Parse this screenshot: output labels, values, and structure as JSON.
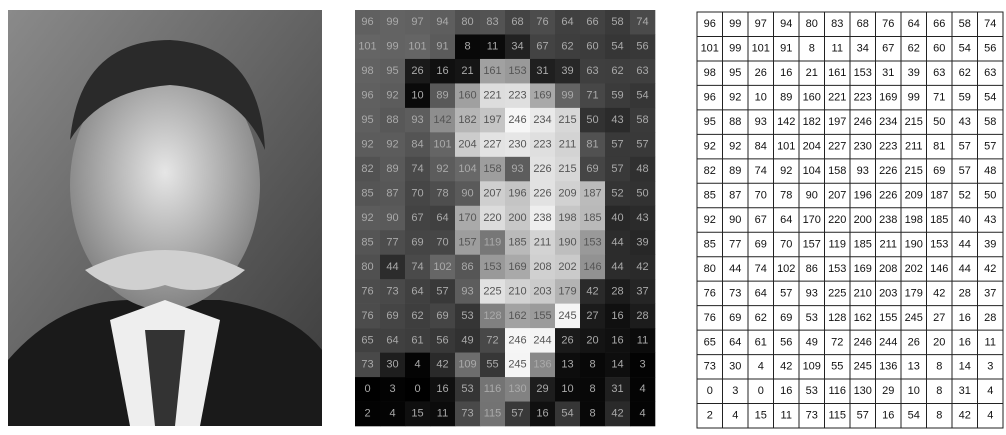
{
  "grid": {
    "rows": [
      [
        96,
        99,
        97,
        94,
        80,
        83,
        68,
        76,
        64,
        66,
        58,
        74
      ],
      [
        101,
        99,
        101,
        91,
        8,
        11,
        34,
        67,
        62,
        60,
        54,
        56
      ],
      [
        98,
        95,
        26,
        16,
        21,
        161,
        153,
        31,
        39,
        63,
        62,
        63
      ],
      [
        96,
        92,
        10,
        89,
        160,
        221,
        223,
        169,
        99,
        71,
        59,
        54
      ],
      [
        95,
        88,
        93,
        142,
        182,
        197,
        246,
        234,
        215,
        50,
        43,
        58
      ],
      [
        92,
        92,
        84,
        101,
        204,
        227,
        230,
        223,
        211,
        81,
        57,
        57
      ],
      [
        82,
        89,
        74,
        92,
        104,
        158,
        93,
        226,
        215,
        69,
        57,
        48
      ],
      [
        85,
        87,
        70,
        78,
        90,
        207,
        196,
        226,
        209,
        187,
        52,
        50
      ],
      [
        92,
        90,
        67,
        64,
        170,
        220,
        200,
        238,
        198,
        185,
        40,
        43
      ],
      [
        85,
        77,
        69,
        70,
        157,
        119,
        185,
        211,
        190,
        153,
        44,
        39
      ],
      [
        80,
        44,
        74,
        102,
        86,
        153,
        169,
        208,
        202,
        146,
        44,
        42
      ],
      [
        76,
        73,
        64,
        57,
        93,
        225,
        210,
        203,
        179,
        42,
        28,
        37
      ],
      [
        76,
        69,
        62,
        69,
        53,
        128,
        162,
        155,
        245,
        27,
        16,
        28
      ],
      [
        65,
        64,
        61,
        56,
        49,
        72,
        246,
        244,
        26,
        20,
        16,
        11
      ],
      [
        73,
        30,
        4,
        42,
        109,
        55,
        245,
        136,
        13,
        8,
        14,
        3
      ],
      [
        0,
        3,
        0,
        16,
        53,
        116,
        130,
        29,
        10,
        8,
        31,
        4
      ],
      [
        2,
        4,
        15,
        11,
        73,
        115,
        57,
        16,
        54,
        8,
        42,
        4
      ]
    ]
  }
}
